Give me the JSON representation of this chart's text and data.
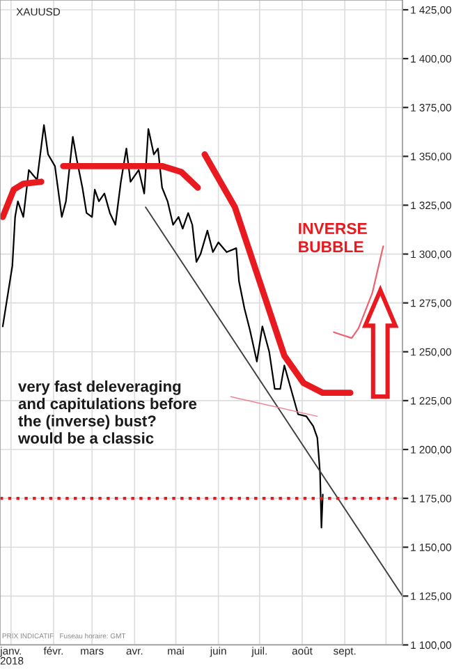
{
  "chart_data": {
    "type": "line",
    "title": "XAUUSD",
    "xlabel": "2018",
    "xlim": [
      "2017-12-24",
      "2018-10-13"
    ],
    "xticks": [
      {
        "value": "2018-01-01",
        "label": "janv."
      },
      {
        "value": "2018-02-01",
        "label": "févr."
      },
      {
        "value": "2018-03-01",
        "label": "mars"
      },
      {
        "value": "2018-04-01",
        "label": "avr."
      },
      {
        "value": "2018-05-01",
        "label": "mai"
      },
      {
        "value": "2018-06-01",
        "label": "juin"
      },
      {
        "value": "2018-07-01",
        "label": "juil."
      },
      {
        "value": "2018-08-01",
        "label": "août"
      },
      {
        "value": "2018-09-01",
        "label": "sept."
      },
      {
        "value": "2018-10-01",
        "label": null
      }
    ],
    "ylim": [
      1100,
      1430
    ],
    "yticks": [
      {
        "value": 1100,
        "label": "1 100,00"
      },
      {
        "value": 1125,
        "label": "1 125,00"
      },
      {
        "value": 1150,
        "label": "1 150,00"
      },
      {
        "value": 1175,
        "label": "1 175,00"
      },
      {
        "value": 1200,
        "label": "1 200,00"
      },
      {
        "value": 1225,
        "label": "1 225,00"
      },
      {
        "value": 1250,
        "label": "1 250,00"
      },
      {
        "value": 1275,
        "label": "1 275,00"
      },
      {
        "value": 1300,
        "label": "1 300,00"
      },
      {
        "value": 1325,
        "label": "1 325,00"
      },
      {
        "value": 1350,
        "label": "1 350,00"
      },
      {
        "value": 1375,
        "label": "1 375,00"
      },
      {
        "value": 1400,
        "label": "1 400,00"
      },
      {
        "value": 1425,
        "label": "1 425,00"
      }
    ],
    "grid": true,
    "legend": false,
    "series": [
      {
        "color": "#000000",
        "x": [
          "2017-12-26",
          "2018-01-02",
          "2018-01-04",
          "2018-01-06",
          "2018-01-10",
          "2018-01-14",
          "2018-01-20",
          "2018-01-25",
          "2018-01-28",
          "2018-02-02",
          "2018-02-07",
          "2018-02-10",
          "2018-02-15",
          "2018-02-18",
          "2018-02-22",
          "2018-02-25",
          "2018-03-01",
          "2018-03-03",
          "2018-03-06",
          "2018-03-10",
          "2018-03-14",
          "2018-03-18",
          "2018-03-22",
          "2018-03-26",
          "2018-03-29",
          "2018-04-04",
          "2018-04-08",
          "2018-04-11",
          "2018-04-15",
          "2018-04-18",
          "2018-04-21",
          "2018-04-25",
          "2018-04-29",
          "2018-05-03",
          "2018-05-06",
          "2018-05-10",
          "2018-05-13",
          "2018-05-16",
          "2018-05-19",
          "2018-05-24",
          "2018-05-28",
          "2018-06-01",
          "2018-06-07",
          "2018-06-14",
          "2018-06-16",
          "2018-06-20",
          "2018-06-24",
          "2018-06-29",
          "2018-07-03",
          "2018-07-08",
          "2018-07-12",
          "2018-07-16",
          "2018-07-19",
          "2018-07-25",
          "2018-07-29",
          "2018-08-04",
          "2018-08-09",
          "2018-08-12",
          "2018-08-14",
          "2018-08-15",
          "2018-08-16"
        ],
        "values": [
          1263,
          1294,
          1319,
          1327,
          1319,
          1343,
          1338,
          1366,
          1351,
          1345,
          1319,
          1327,
          1360,
          1348,
          1334,
          1321,
          1319,
          1333,
          1327,
          1331,
          1321,
          1315,
          1337,
          1354,
          1337,
          1343,
          1331,
          1364,
          1351,
          1354,
          1334,
          1327,
          1315,
          1319,
          1313,
          1321,
          1315,
          1296,
          1300,
          1312,
          1301,
          1306,
          1301,
          1303,
          1286,
          1272,
          1261,
          1245,
          1263,
          1250,
          1231,
          1231,
          1243,
          1228,
          1218,
          1217,
          1212,
          1206,
          1188,
          1160,
          1177
        ]
      },
      {
        "color": "#404040",
        "x": [
          "2018-04-09",
          "2018-10-13"
        ],
        "values": [
          1324,
          1125
        ]
      },
      {
        "color": "#e8191f",
        "x": [
          "2017-12-26",
          "2018-01-03",
          "2018-01-10",
          "2018-01-23"
        ],
        "values": [
          1319,
          1333,
          1336,
          1337
        ]
      },
      {
        "color": "#e8191f",
        "x": [
          "2018-02-08",
          "2018-04-21",
          "2018-05-05",
          "2018-05-17"
        ],
        "values": [
          1345,
          1345,
          1342,
          1334
        ]
      },
      {
        "color": "#e8191f",
        "x": [
          "2018-05-22",
          "2018-06-13",
          "2018-07-01",
          "2018-07-19",
          "2018-08-02",
          "2018-08-16",
          "2018-09-05"
        ],
        "values": [
          1351,
          1324,
          1286,
          1248,
          1234,
          1229,
          1229
        ]
      },
      {
        "color": "#f06070",
        "x": [
          "2018-08-24",
          "2018-09-06",
          "2018-09-11",
          "2018-09-21",
          "2018-09-29"
        ],
        "values": [
          1260,
          1257,
          1262,
          1280,
          1304
        ]
      },
      {
        "color": "#f08090",
        "x": [
          "2018-06-10",
          "2018-08-12"
        ],
        "values": [
          1227,
          1217
        ]
      }
    ],
    "ref_lines": [
      {
        "axis": "y",
        "value": 1175,
        "color": "#e8191f",
        "line_style": "dotted"
      }
    ],
    "annotations": [
      "very fast deleveraging\nand capitulations before\nthe (inverse) bust?\nwould be a classic",
      "INVERSE\nBUBBLE",
      "PRIX INDICATIF   Fuseau horaire: GMT"
    ]
  }
}
